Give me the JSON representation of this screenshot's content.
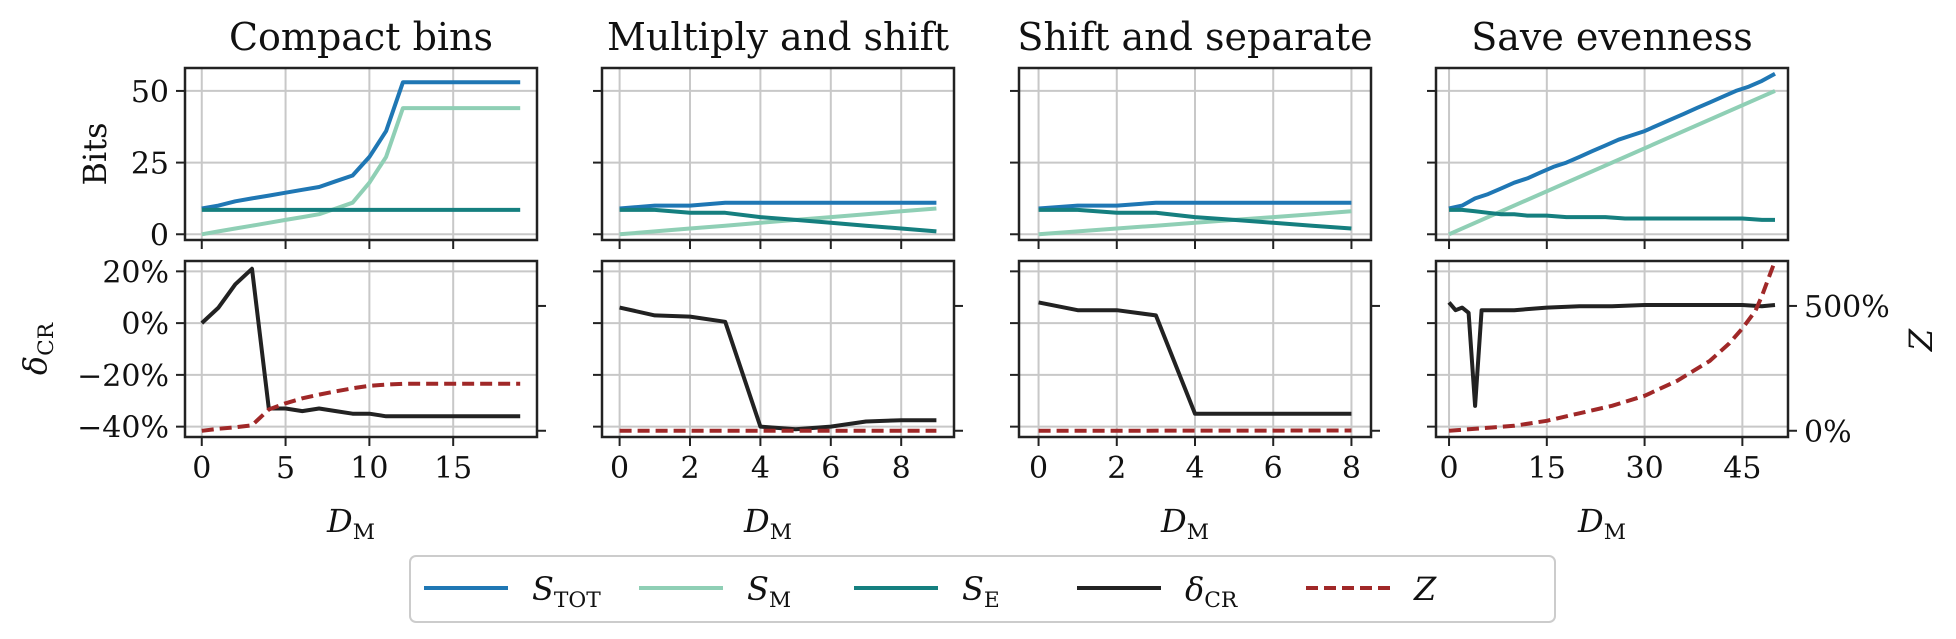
{
  "figure": {
    "legend_placement": "bottom-center",
    "legend": [
      {
        "series": "S_TOT",
        "label": "S",
        "sub": "TOT",
        "italic": true,
        "color": "#1f77b4",
        "dashed": false
      },
      {
        "series": "S_M",
        "label": "S",
        "sub": "M",
        "italic": true,
        "color": "#8fcfb5",
        "dashed": false
      },
      {
        "series": "S_E",
        "label": "S",
        "sub": "E",
        "italic": true,
        "color": "#157f7f",
        "dashed": false
      },
      {
        "series": "delta_CR",
        "label": "δ",
        "sub": "CR",
        "italic": true,
        "color": "#222222",
        "dashed": false
      },
      {
        "series": "Z",
        "label": "Z",
        "sub": "",
        "italic": true,
        "color": "#a02828",
        "dashed": true
      }
    ],
    "top_ylabel": "Bits",
    "bottom_ylabel": {
      "main": "δ",
      "sub": "CR"
    },
    "right_ylabel": "Z",
    "xlabel": {
      "main": "D",
      "sub": "M"
    },
    "grid": true
  },
  "chart_data": [
    {
      "type": "line",
      "title": "Compact bins",
      "xticks": [
        0,
        5,
        10,
        15
      ],
      "xticks_labels": [
        "0",
        "5",
        "10",
        "15"
      ],
      "top": {
        "ylim": [
          -2,
          58
        ],
        "yticks": [
          0,
          25,
          50
        ],
        "yticks_labels": [
          "0",
          "25",
          "50"
        ],
        "series": [
          {
            "key": "S_TOT",
            "x": [
              0,
              1,
              2,
              3,
              4,
              5,
              6,
              7,
              8,
              9,
              10,
              11,
              12,
              13,
              14,
              15,
              16,
              17,
              18,
              19
            ],
            "y": [
              9,
              10,
              11.5,
              12.5,
              13.5,
              14.5,
              15.5,
              16.5,
              18.5,
              20.5,
              27,
              36,
              53,
              53,
              53,
              53,
              53,
              53,
              53,
              53
            ]
          },
          {
            "key": "S_M",
            "x": [
              0,
              1,
              2,
              3,
              4,
              5,
              6,
              7,
              8,
              9,
              10,
              11,
              12,
              13,
              14,
              15,
              16,
              17,
              18,
              19
            ],
            "y": [
              0,
              1,
              2,
              3,
              4,
              5,
              6,
              7,
              9,
              11,
              18,
              27,
              44,
              44,
              44,
              44,
              44,
              44,
              44,
              44
            ]
          },
          {
            "key": "S_E",
            "x": [
              0,
              19
            ],
            "y": [
              8.5,
              8.5
            ]
          }
        ]
      },
      "bottom": {
        "ylim": [
          -44,
          24
        ],
        "yticks": [
          20,
          0,
          -20,
          -40
        ],
        "yticks_labels": [
          "20%",
          "0%",
          "−20%",
          "−40%"
        ],
        "right_ylim": [
          -25,
          680
        ],
        "right_yticks": [
          0,
          500
        ],
        "right_yticks_labels": [],
        "series": [
          {
            "key": "delta_CR",
            "axis": "left",
            "x": [
              0,
              1,
              2,
              3,
              4,
              5,
              6,
              7,
              8,
              9,
              10,
              11,
              12,
              13,
              14,
              15,
              16,
              17,
              18,
              19
            ],
            "y": [
              0,
              6,
              15,
              21,
              -33,
              -33,
              -34,
              -33,
              -34,
              -35,
              -35,
              -36,
              -36,
              -36,
              -36,
              -36,
              -36,
              -36,
              -36,
              -36
            ]
          },
          {
            "key": "Z",
            "axis": "right",
            "x": [
              0,
              1,
              2,
              3,
              4,
              5,
              6,
              7,
              8,
              9,
              10,
              11,
              12,
              13,
              14,
              15,
              16,
              17,
              18,
              19
            ],
            "y": [
              0,
              8,
              14,
              22,
              85,
              110,
              130,
              145,
              158,
              170,
              180,
              185,
              188,
              188,
              188,
              188,
              188,
              188,
              188,
              188
            ]
          }
        ]
      },
      "xlim": [
        -1,
        20
      ]
    },
    {
      "type": "line",
      "title": "Multiply and shift",
      "xticks": [
        0,
        2,
        4,
        6,
        8
      ],
      "xticks_labels": [
        "0",
        "2",
        "4",
        "6",
        "8"
      ],
      "top": {
        "ylim": [
          -2,
          58
        ],
        "yticks": [
          0,
          25,
          50
        ],
        "yticks_labels": [],
        "series": [
          {
            "key": "S_TOT",
            "x": [
              0,
              1,
              2,
              3,
              4,
              5,
              6,
              7,
              8,
              9
            ],
            "y": [
              9,
              10,
              10,
              11,
              11,
              11,
              11,
              11,
              11,
              11
            ]
          },
          {
            "key": "S_M",
            "x": [
              0,
              1,
              2,
              3,
              4,
              5,
              6,
              7,
              8,
              9
            ],
            "y": [
              0,
              1,
              2,
              3,
              4,
              5,
              6,
              7,
              8,
              9
            ]
          },
          {
            "key": "S_E",
            "x": [
              0,
              1,
              2,
              3,
              4,
              5,
              6,
              7,
              8,
              9
            ],
            "y": [
              8.5,
              8.5,
              7.5,
              7.5,
              6,
              5,
              4,
              3,
              2,
              1
            ]
          }
        ]
      },
      "bottom": {
        "ylim": [
          -44,
          24
        ],
        "yticks": [
          20,
          0,
          -20,
          -40
        ],
        "yticks_labels": [],
        "right_ylim": [
          -25,
          680
        ],
        "right_yticks": [
          0,
          500
        ],
        "right_yticks_labels": [],
        "series": [
          {
            "key": "delta_CR",
            "axis": "left",
            "x": [
              0,
              1,
              2,
              3,
              4,
              5,
              6,
              7,
              8,
              9
            ],
            "y": [
              6,
              3,
              2.5,
              0.5,
              -40,
              -41,
              -40,
              -38,
              -37.5,
              -37.5
            ]
          },
          {
            "key": "Z",
            "axis": "right",
            "x": [
              0,
              9
            ],
            "y": [
              0,
              0
            ]
          }
        ]
      },
      "xlim": [
        -0.5,
        9.5
      ]
    },
    {
      "type": "line",
      "title": "Shift and separate",
      "xticks": [
        0,
        2,
        4,
        6,
        8
      ],
      "xticks_labels": [
        "0",
        "2",
        "4",
        "6",
        "8"
      ],
      "top": {
        "ylim": [
          -2,
          58
        ],
        "yticks": [
          0,
          25,
          50
        ],
        "yticks_labels": [],
        "series": [
          {
            "key": "S_TOT",
            "x": [
              0,
              1,
              2,
              3,
              4,
              5,
              6,
              7,
              8
            ],
            "y": [
              9,
              10,
              10,
              11,
              11,
              11,
              11,
              11,
              11
            ]
          },
          {
            "key": "S_M",
            "x": [
              0,
              1,
              2,
              3,
              4,
              5,
              6,
              7,
              8
            ],
            "y": [
              0,
              1,
              2,
              3,
              4,
              5,
              6,
              7,
              8
            ]
          },
          {
            "key": "S_E",
            "x": [
              0,
              1,
              2,
              3,
              4,
              5,
              6,
              7,
              8
            ],
            "y": [
              8.5,
              8.5,
              7.5,
              7.5,
              6,
              5,
              4,
              3,
              2
            ]
          }
        ]
      },
      "bottom": {
        "ylim": [
          -44,
          24
        ],
        "yticks": [
          20,
          0,
          -20,
          -40
        ],
        "yticks_labels": [],
        "right_ylim": [
          -25,
          680
        ],
        "right_yticks": [
          0,
          500
        ],
        "right_yticks_labels": [],
        "series": [
          {
            "key": "delta_CR",
            "axis": "left",
            "x": [
              0,
              1,
              2,
              3,
              4,
              5,
              6,
              7,
              8
            ],
            "y": [
              8,
              5,
              5,
              3,
              -35,
              -35,
              -35,
              -35,
              -35
            ]
          },
          {
            "key": "Z",
            "axis": "right",
            "x": [
              0,
              8
            ],
            "y": [
              0,
              1
            ]
          }
        ]
      },
      "xlim": [
        -0.5,
        8.5
      ]
    },
    {
      "type": "line",
      "title": "Save evenness",
      "xticks": [
        0,
        15,
        30,
        45
      ],
      "xticks_labels": [
        "0",
        "15",
        "30",
        "45"
      ],
      "top": {
        "ylim": [
          -2,
          58
        ],
        "yticks": [
          0,
          25,
          50
        ],
        "yticks_labels": [],
        "series": [
          {
            "key": "S_TOT",
            "x": [
              0,
              2,
              4,
              6,
              8,
              10,
              12,
              14,
              16,
              18,
              20,
              22,
              24,
              26,
              28,
              30,
              32,
              34,
              36,
              38,
              40,
              42,
              44,
              46,
              48,
              50
            ],
            "y": [
              9,
              10,
              12.5,
              14,
              16,
              18,
              19.5,
              21.5,
              23.5,
              25,
              27,
              29,
              31,
              33,
              34.5,
              36,
              38,
              40,
              42,
              44,
              46,
              48,
              50,
              51.5,
              53.5,
              56
            ]
          },
          {
            "key": "S_M",
            "x": [
              0,
              50
            ],
            "y": [
              0,
              50
            ]
          },
          {
            "key": "S_E",
            "x": [
              0,
              2,
              4,
              6,
              8,
              10,
              12,
              15,
              18,
              21,
              24,
              27,
              30,
              33,
              36,
              39,
              42,
              45,
              48,
              50
            ],
            "y": [
              8.5,
              8.5,
              8,
              7.5,
              7,
              7,
              6.5,
              6.5,
              6,
              6,
              6,
              5.5,
              5.5,
              5.5,
              5.5,
              5.5,
              5.5,
              5.5,
              5,
              5
            ]
          }
        ]
      },
      "bottom": {
        "ylim": [
          -44,
          24
        ],
        "yticks": [
          20,
          0,
          -20,
          -40
        ],
        "yticks_labels": [],
        "right_ylim": [
          -25,
          680
        ],
        "right_yticks": [
          0,
          500
        ],
        "right_yticks_labels": [
          "0%",
          "500%"
        ],
        "series": [
          {
            "key": "delta_CR",
            "axis": "left",
            "x": [
              0,
              1,
              2,
              3,
              4,
              5,
              6,
              10,
              15,
              20,
              25,
              30,
              35,
              40,
              45,
              48,
              50
            ],
            "y": [
              8,
              5,
              6,
              4,
              -32,
              5,
              5,
              5,
              6,
              6.5,
              6.5,
              7,
              7,
              7,
              7,
              6.5,
              7
            ]
          },
          {
            "key": "Z",
            "axis": "right",
            "x": [
              0,
              5,
              10,
              15,
              20,
              25,
              30,
              35,
              40,
              43,
              45,
              47,
              48,
              49,
              50
            ],
            "y": [
              0,
              10,
              20,
              40,
              70,
              100,
              140,
              200,
              280,
              350,
              410,
              480,
              540,
              610,
              680
            ]
          }
        ]
      },
      "xlim": [
        -2,
        52
      ]
    }
  ]
}
